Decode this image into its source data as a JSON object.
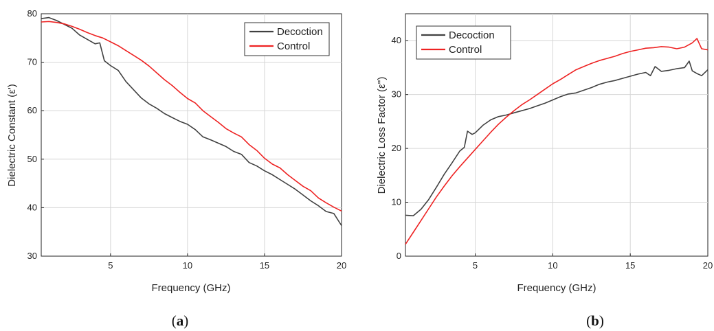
{
  "chart_data": [
    {
      "type": "line",
      "panel": "a",
      "ylabel": "Dielectric Constant (ε')",
      "xlabel": "Frequency (GHz)",
      "xlim": [
        0.5,
        20
      ],
      "ylim": [
        30,
        80
      ],
      "xticks": [
        5,
        10,
        15,
        20
      ],
      "yticks": [
        30,
        40,
        50,
        60,
        70,
        80
      ],
      "grid": true,
      "legend_position": "top-right",
      "series": [
        {
          "name": "Decoction",
          "color": "#404040",
          "x": [
            0.5,
            1.0,
            1.5,
            2.0,
            2.5,
            3.0,
            3.5,
            4.0,
            4.3,
            4.6,
            5.0,
            5.5,
            6.0,
            6.5,
            7.0,
            7.5,
            8.0,
            8.5,
            9.0,
            9.5,
            10.0,
            10.5,
            11.0,
            11.5,
            12.0,
            12.5,
            13.0,
            13.5,
            14.0,
            14.5,
            15.0,
            15.5,
            16.0,
            16.5,
            17.0,
            17.5,
            18.0,
            18.5,
            19.0,
            19.5,
            20.0
          ],
          "y": [
            79.0,
            79.2,
            78.6,
            77.8,
            77.0,
            75.6,
            74.7,
            73.8,
            74.0,
            70.3,
            69.3,
            68.3,
            66.0,
            64.3,
            62.6,
            61.4,
            60.5,
            59.4,
            58.6,
            57.8,
            57.2,
            56.1,
            54.6,
            54.0,
            53.3,
            52.6,
            51.6,
            51.0,
            49.3,
            48.6,
            47.6,
            46.8,
            45.8,
            44.8,
            43.8,
            42.6,
            41.4,
            40.4,
            39.2,
            38.8,
            36.3
          ]
        },
        {
          "name": "Control",
          "color": "#ee2222",
          "x": [
            0.5,
            1.0,
            1.5,
            2.0,
            2.5,
            3.0,
            3.5,
            4.0,
            4.5,
            5.0,
            5.5,
            6.0,
            6.5,
            7.0,
            7.5,
            8.0,
            8.5,
            9.0,
            9.5,
            10.0,
            10.5,
            11.0,
            11.5,
            12.0,
            12.5,
            13.0,
            13.5,
            14.0,
            14.5,
            15.0,
            15.5,
            16.0,
            16.5,
            17.0,
            17.5,
            18.0,
            18.5,
            19.0,
            19.5,
            20.0
          ],
          "y": [
            78.3,
            78.4,
            78.2,
            77.9,
            77.4,
            76.8,
            76.1,
            75.5,
            75.0,
            74.2,
            73.4,
            72.4,
            71.4,
            70.4,
            69.2,
            67.8,
            66.4,
            65.2,
            63.8,
            62.5,
            61.6,
            60.0,
            58.8,
            57.6,
            56.3,
            55.4,
            54.6,
            53.0,
            51.8,
            50.2,
            49.0,
            48.2,
            46.8,
            45.6,
            44.4,
            43.5,
            42.0,
            41.0,
            40.1,
            39.3
          ]
        }
      ]
    },
    {
      "type": "line",
      "panel": "b",
      "ylabel": "Dielectric Loss Factor (ε'')",
      "xlabel": "Frequency (GHz)",
      "xlim": [
        0.5,
        20
      ],
      "ylim": [
        0,
        45
      ],
      "xticks": [
        5,
        10,
        15,
        20
      ],
      "yticks": [
        0,
        10,
        20,
        30,
        40
      ],
      "grid": true,
      "legend_position": "top-left",
      "series": [
        {
          "name": "Decoction",
          "color": "#404040",
          "x": [
            0.5,
            1.0,
            1.5,
            2.0,
            2.5,
            3.0,
            3.5,
            4.0,
            4.3,
            4.5,
            4.8,
            5.0,
            5.5,
            6.0,
            6.5,
            7.0,
            7.5,
            8.0,
            8.5,
            9.0,
            9.5,
            10.0,
            10.5,
            11.0,
            11.5,
            12.0,
            12.5,
            13.0,
            13.5,
            14.0,
            14.5,
            15.0,
            15.5,
            16.0,
            16.3,
            16.6,
            17.0,
            17.5,
            18.0,
            18.5,
            18.8,
            19.0,
            19.3,
            19.6,
            20.0
          ],
          "y": [
            7.6,
            7.5,
            8.7,
            10.5,
            12.8,
            15.2,
            17.3,
            19.5,
            20.2,
            23.2,
            22.6,
            22.9,
            24.3,
            25.3,
            25.9,
            26.2,
            26.6,
            27.0,
            27.4,
            27.9,
            28.4,
            29.0,
            29.6,
            30.1,
            30.3,
            30.8,
            31.3,
            31.9,
            32.3,
            32.6,
            33.0,
            33.4,
            33.8,
            34.1,
            33.5,
            35.2,
            34.3,
            34.5,
            34.8,
            35.0,
            36.2,
            34.4,
            33.9,
            33.5,
            34.6
          ]
        },
        {
          "name": "Control",
          "color": "#ee2222",
          "x": [
            0.5,
            1.0,
            1.5,
            2.0,
            2.5,
            3.0,
            3.5,
            4.0,
            4.5,
            5.0,
            5.5,
            6.0,
            6.5,
            7.0,
            7.5,
            8.0,
            8.5,
            9.0,
            9.5,
            10.0,
            10.5,
            11.0,
            11.5,
            12.0,
            12.5,
            13.0,
            13.5,
            14.0,
            14.5,
            15.0,
            15.5,
            16.0,
            16.5,
            17.0,
            17.5,
            18.0,
            18.5,
            19.0,
            19.3,
            19.6,
            20.0
          ],
          "y": [
            2.2,
            4.4,
            6.6,
            8.8,
            11.0,
            13.0,
            14.9,
            16.6,
            18.2,
            19.8,
            21.4,
            23.0,
            24.5,
            25.8,
            27.0,
            28.1,
            29.0,
            30.0,
            31.0,
            32.0,
            32.8,
            33.7,
            34.6,
            35.2,
            35.8,
            36.3,
            36.7,
            37.1,
            37.6,
            38.0,
            38.3,
            38.6,
            38.7,
            38.9,
            38.8,
            38.5,
            38.8,
            39.6,
            40.4,
            38.5,
            38.3
          ]
        }
      ]
    }
  ]
}
